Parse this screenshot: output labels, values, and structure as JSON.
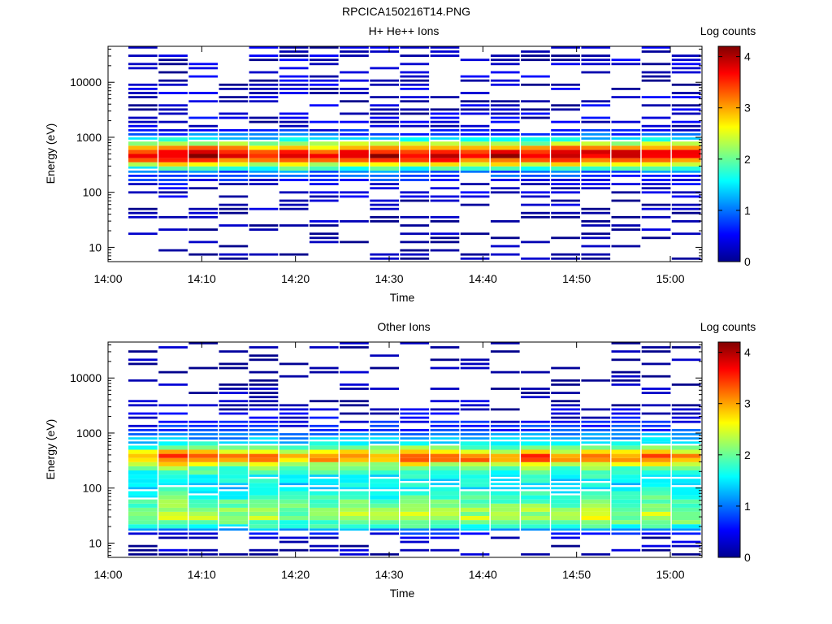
{
  "page": {
    "title": "RPCICA150216T14.PNG"
  },
  "chart_data": [
    {
      "type": "heatmap",
      "title": "H+ He++ Ions",
      "xlabel": "Time",
      "ylabel": "Energy (eV)",
      "x_ticks": [
        "14:00",
        "14:10",
        "14:20",
        "14:30",
        "14:40",
        "14:50",
        "15:00"
      ],
      "y_ticks": [
        "10",
        "100",
        "1000",
        "10000"
      ],
      "y_scale": "log",
      "y_range_eV": [
        5.5,
        45000
      ],
      "x_range": [
        "14:00",
        "15:03"
      ],
      "colorbar": {
        "label": "Log counts",
        "ticks": [
          "0",
          "1",
          "2",
          "3",
          "4"
        ],
        "range": [
          0,
          4.2
        ]
      },
      "energy_profile": {
        "log_energy": [
          1.0,
          1.3,
          1.6,
          1.85,
          2.1,
          2.35,
          2.45,
          2.55,
          2.62,
          2.68,
          2.74,
          2.8,
          2.87,
          2.93,
          3.0,
          3.07,
          3.2,
          3.5,
          3.8,
          4.2,
          4.6
        ],
        "log_counts": [
          0.05,
          0.1,
          0.15,
          0.2,
          0.35,
          0.9,
          1.9,
          2.9,
          3.6,
          3.9,
          3.5,
          3.0,
          2.4,
          1.7,
          1.1,
          0.6,
          0.35,
          0.3,
          0.3,
          0.3,
          0.25
        ]
      },
      "intensity": {
        "peak_scale": [
          0.95,
          1.04,
          1.07,
          1.0,
          0.97,
          1.05,
          0.96,
          1.0,
          1.05,
          1.02,
          1.06,
          1.0,
          1.04,
          0.98,
          1.06,
          1.02,
          1.07,
          1.03,
          1.0
        ]
      }
    },
    {
      "type": "heatmap",
      "title": "Other Ions",
      "xlabel": "Time",
      "ylabel": "Energy (eV)",
      "x_ticks": [
        "14:00",
        "14:10",
        "14:20",
        "14:30",
        "14:40",
        "14:50",
        "15:00"
      ],
      "y_ticks": [
        "10",
        "100",
        "1000",
        "10000"
      ],
      "y_scale": "log",
      "y_range_eV": [
        5.5,
        45000
      ],
      "x_range": [
        "14:00",
        "15:03"
      ],
      "colorbar": {
        "label": "Log counts",
        "ticks": [
          "0",
          "1",
          "2",
          "3",
          "4"
        ],
        "range": [
          0,
          4.2
        ]
      },
      "energy_profile": {
        "log_energy": [
          1.1,
          1.3,
          1.45,
          1.6,
          1.8,
          2.0,
          2.2,
          2.35,
          2.45,
          2.52,
          2.58,
          2.63,
          2.7,
          2.78,
          2.9,
          3.0,
          3.2,
          3.45,
          3.7,
          4.3
        ],
        "log_counts": [
          0.2,
          1.7,
          2.3,
          2.2,
          1.9,
          1.5,
          1.6,
          2.0,
          2.6,
          3.2,
          3.3,
          2.9,
          2.3,
          1.7,
          1.2,
          0.9,
          0.5,
          0.25,
          0.1,
          0.05
        ]
      },
      "intensity": {
        "peak_scale": [
          0.9,
          1.05,
          1.0,
          0.95,
          1.0,
          0.92,
          0.98,
          1.0,
          0.95,
          1.02,
          0.97,
          1.0,
          0.95,
          1.02,
          0.97,
          1.05,
          0.95,
          1.03,
          0.97
        ]
      }
    }
  ]
}
